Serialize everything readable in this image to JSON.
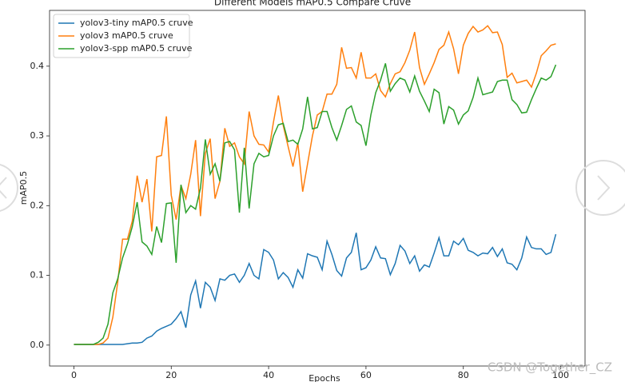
{
  "chart_data": {
    "type": "line",
    "title": "Different Models mAP0.5 Compare Cruve",
    "xlabel": "Epochs",
    "ylabel": "mAP0.5",
    "x": [
      0,
      1,
      2,
      3,
      4,
      5,
      6,
      7,
      8,
      9,
      10,
      11,
      12,
      13,
      14,
      15,
      16,
      17,
      18,
      19,
      20,
      21,
      22,
      23,
      24,
      25,
      26,
      27,
      28,
      29,
      30,
      31,
      32,
      33,
      34,
      35,
      36,
      37,
      38,
      39,
      40,
      41,
      42,
      43,
      44,
      45,
      46,
      47,
      48,
      49,
      50,
      51,
      52,
      53,
      54,
      55,
      56,
      57,
      58,
      59,
      60,
      61,
      62,
      63,
      64,
      65,
      66,
      67,
      68,
      69,
      70,
      71,
      72,
      73,
      74,
      75,
      76,
      77,
      78,
      79,
      80,
      81,
      82,
      83,
      84,
      85,
      86,
      87,
      88,
      89,
      90,
      91,
      92,
      93,
      94,
      95,
      96,
      97,
      98,
      99
    ],
    "series": [
      {
        "name": "yolov3-tiny mAP0.5 cruve",
        "color": "#1f77b4",
        "values": [
          0.001,
          0.001,
          0.001,
          0.001,
          0.001,
          0.001,
          0.001,
          0.001,
          0.001,
          0.001,
          0.001,
          0.002,
          0.003,
          0.003,
          0.004,
          0.01,
          0.013,
          0.02,
          0.024,
          0.027,
          0.03,
          0.038,
          0.048,
          0.025,
          0.072,
          0.092,
          0.053,
          0.09,
          0.083,
          0.064,
          0.095,
          0.093,
          0.1,
          0.102,
          0.09,
          0.1,
          0.117,
          0.1,
          0.095,
          0.137,
          0.133,
          0.122,
          0.095,
          0.104,
          0.097,
          0.083,
          0.108,
          0.096,
          0.131,
          0.128,
          0.126,
          0.108,
          0.149,
          0.13,
          0.107,
          0.099,
          0.125,
          0.133,
          0.161,
          0.108,
          0.111,
          0.122,
          0.141,
          0.125,
          0.124,
          0.101,
          0.117,
          0.143,
          0.135,
          0.117,
          0.128,
          0.106,
          0.115,
          0.112,
          0.132,
          0.154,
          0.128,
          0.128,
          0.149,
          0.144,
          0.153,
          0.136,
          0.133,
          0.128,
          0.132,
          0.131,
          0.14,
          0.127,
          0.138,
          0.118,
          0.116,
          0.108,
          0.125,
          0.155,
          0.14,
          0.138,
          0.138,
          0.13,
          0.133,
          0.159
        ]
      },
      {
        "name": "yolov3 mAP0.5 cruve",
        "color": "#ff7f0e",
        "values": [
          0.001,
          0.001,
          0.001,
          0.001,
          0.001,
          0.001,
          0.003,
          0.01,
          0.04,
          0.09,
          0.152,
          0.152,
          0.178,
          0.243,
          0.205,
          0.238,
          0.163,
          0.27,
          0.272,
          0.328,
          0.215,
          0.18,
          0.229,
          0.21,
          0.245,
          0.294,
          0.185,
          0.275,
          0.296,
          0.21,
          0.235,
          0.311,
          0.285,
          0.29,
          0.27,
          0.26,
          0.335,
          0.3,
          0.288,
          0.287,
          0.277,
          0.32,
          0.358,
          0.315,
          0.285,
          0.256,
          0.29,
          0.22,
          0.26,
          0.3,
          0.33,
          0.335,
          0.36,
          0.36,
          0.374,
          0.427,
          0.397,
          0.398,
          0.383,
          0.42,
          0.383,
          0.383,
          0.389,
          0.365,
          0.356,
          0.375,
          0.389,
          0.392,
          0.405,
          0.423,
          0.449,
          0.398,
          0.374,
          0.389,
          0.405,
          0.424,
          0.43,
          0.449,
          0.425,
          0.389,
          0.43,
          0.447,
          0.457,
          0.449,
          0.452,
          0.458,
          0.448,
          0.449,
          0.431,
          0.384,
          0.39,
          0.376,
          0.378,
          0.38,
          0.37,
          0.39,
          0.415,
          0.422,
          0.43,
          0.432
        ]
      },
      {
        "name": "yolov3-spp mAP0.5 cruve",
        "color": "#2ca02c",
        "values": [
          0.001,
          0.001,
          0.001,
          0.001,
          0.001,
          0.004,
          0.01,
          0.03,
          0.075,
          0.095,
          0.125,
          0.145,
          0.17,
          0.205,
          0.148,
          0.142,
          0.13,
          0.17,
          0.147,
          0.203,
          0.204,
          0.118,
          0.23,
          0.19,
          0.2,
          0.195,
          0.225,
          0.295,
          0.245,
          0.26,
          0.235,
          0.29,
          0.292,
          0.28,
          0.19,
          0.283,
          0.196,
          0.26,
          0.275,
          0.27,
          0.272,
          0.3,
          0.316,
          0.318,
          0.292,
          0.294,
          0.288,
          0.31,
          0.356,
          0.31,
          0.312,
          0.335,
          0.335,
          0.312,
          0.294,
          0.315,
          0.338,
          0.343,
          0.32,
          0.315,
          0.286,
          0.33,
          0.362,
          0.38,
          0.404,
          0.364,
          0.375,
          0.383,
          0.38,
          0.363,
          0.386,
          0.364,
          0.35,
          0.335,
          0.367,
          0.362,
          0.317,
          0.342,
          0.337,
          0.317,
          0.33,
          0.336,
          0.355,
          0.383,
          0.359,
          0.361,
          0.363,
          0.378,
          0.38,
          0.38,
          0.352,
          0.345,
          0.333,
          0.334,
          0.352,
          0.368,
          0.383,
          0.38,
          0.385,
          0.402
        ]
      }
    ],
    "xlim": [
      -5,
      105
    ],
    "ylim": [
      -0.03,
      0.48
    ],
    "xticks": [
      0,
      20,
      40,
      60,
      80,
      100
    ],
    "yticks": [
      {
        "value": 0,
        "label": "0.0"
      },
      0.1,
      0.2,
      0.3,
      0.4
    ],
    "legend": "upper left"
  },
  "watermark": "CSDN @Together_CZ"
}
